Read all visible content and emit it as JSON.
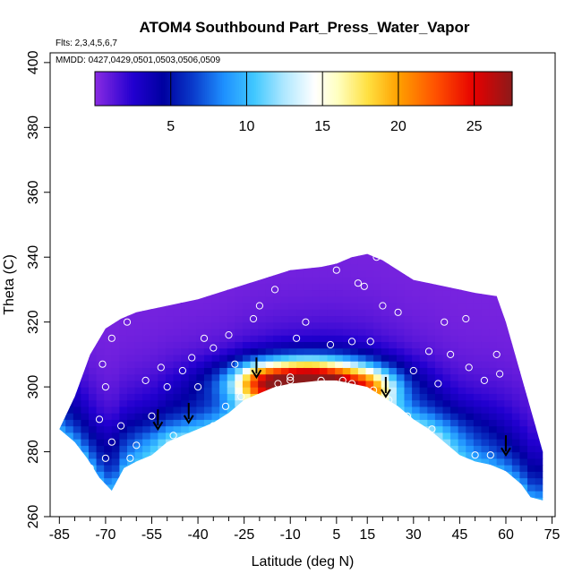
{
  "chart_data": {
    "type": "heatmap",
    "title": "ATOM4 Southbound Part_Press_Water_Vapor",
    "subtitle_flights": "Flts: 2,3,4,5,6,7",
    "subtitle_dates": "MMDD: 0427,0429,0501,0503,0506,0509",
    "xlabel": "Latitude (deg N)",
    "ylabel": "Theta (C)",
    "xlim": [
      -88,
      76
    ],
    "ylim": [
      260,
      403
    ],
    "x_tick_labels": [
      "-85",
      "-70",
      "-55",
      "-40",
      "-25",
      "-10",
      "5",
      "15",
      "30",
      "45",
      "60",
      "75"
    ],
    "x_tick_values": [
      -85,
      -70,
      -55,
      -40,
      -25,
      -10,
      5,
      15,
      30,
      45,
      60,
      75
    ],
    "x_minor_ticks": [
      -80,
      -75,
      -65,
      -60,
      -50,
      -45,
      -35,
      -30,
      -20,
      -15,
      -5,
      0,
      10,
      20,
      25,
      35,
      40,
      50,
      55,
      65,
      70
    ],
    "y_tick_labels": [
      "260",
      "280",
      "300",
      "320",
      "340",
      "360",
      "380",
      "400"
    ],
    "y_tick_values": [
      260,
      280,
      300,
      320,
      340,
      360,
      380,
      400
    ],
    "colorbar": {
      "range": [
        0,
        27.5
      ],
      "tick_labels": [
        "5",
        "10",
        "15",
        "20",
        "25"
      ],
      "tick_values": [
        5,
        10,
        15,
        20,
        25
      ],
      "stops": [
        {
          "v": 0,
          "c": "#8a2be2"
        },
        {
          "v": 2.5,
          "c": "#2200d0"
        },
        {
          "v": 4.5,
          "c": "#0000a0"
        },
        {
          "v": 6.5,
          "c": "#0a3ccc"
        },
        {
          "v": 8.5,
          "c": "#1e90ff"
        },
        {
          "v": 10.5,
          "c": "#40c8ff"
        },
        {
          "v": 12.5,
          "c": "#b0e8ff"
        },
        {
          "v": 14.5,
          "c": "#ffffff"
        },
        {
          "v": 16,
          "c": "#ffffc0"
        },
        {
          "v": 18,
          "c": "#ffe040"
        },
        {
          "v": 20,
          "c": "#ffa000"
        },
        {
          "v": 22.5,
          "c": "#ff5000"
        },
        {
          "v": 25,
          "c": "#e60000"
        },
        {
          "v": 27.5,
          "c": "#8c1a1a"
        }
      ]
    },
    "domain_top": [
      [
        -85,
        287
      ],
      [
        -80,
        297
      ],
      [
        -75,
        310
      ],
      [
        -70,
        318
      ],
      [
        -65,
        321
      ],
      [
        -60,
        323
      ],
      [
        -50,
        325
      ],
      [
        -40,
        327
      ],
      [
        -30,
        330
      ],
      [
        -20,
        333
      ],
      [
        -10,
        336
      ],
      [
        0,
        337
      ],
      [
        5,
        338
      ],
      [
        10,
        340
      ],
      [
        15,
        341
      ],
      [
        20,
        339
      ],
      [
        25,
        336
      ],
      [
        30,
        333
      ],
      [
        40,
        331
      ],
      [
        50,
        329
      ],
      [
        57,
        328
      ],
      [
        60,
        320
      ],
      [
        63,
        310
      ],
      [
        66,
        300
      ],
      [
        69,
        290
      ],
      [
        72,
        280
      ],
      [
        72,
        265
      ]
    ],
    "domain_bottom": [
      [
        -85,
        287
      ],
      [
        -80,
        283
      ],
      [
        -76,
        278
      ],
      [
        -72,
        272
      ],
      [
        -68,
        268
      ],
      [
        -64,
        275
      ],
      [
        -60,
        277
      ],
      [
        -55,
        279
      ],
      [
        -50,
        283
      ],
      [
        -45,
        285
      ],
      [
        -40,
        287
      ],
      [
        -35,
        289
      ],
      [
        -30,
        292
      ],
      [
        -25,
        296
      ],
      [
        -20,
        298
      ],
      [
        -15,
        300
      ],
      [
        -10,
        301
      ],
      [
        -5,
        301.5
      ],
      [
        0,
        302
      ],
      [
        5,
        302
      ],
      [
        10,
        301
      ],
      [
        15,
        300
      ],
      [
        20,
        297
      ],
      [
        25,
        294
      ],
      [
        30,
        290
      ],
      [
        35,
        287
      ],
      [
        40,
        283
      ],
      [
        45,
        279
      ],
      [
        50,
        277
      ],
      [
        55,
        276
      ],
      [
        60,
        274
      ],
      [
        65,
        270
      ],
      [
        68,
        266
      ],
      [
        72,
        265
      ]
    ],
    "fields": [
      {
        "type": "gauss",
        "x": -5,
        "y": 302,
        "sx": 15,
        "sy": 4.5,
        "amp": 24
      },
      {
        "type": "gauss",
        "x": 16,
        "y": 299,
        "sx": 6,
        "sy": 4,
        "amp": 6
      },
      {
        "type": "gauss",
        "x": -20,
        "y": 301,
        "sx": 5,
        "sy": 4,
        "amp": 4
      },
      {
        "type": "gauss",
        "x": 38,
        "y": 285,
        "sx": 10,
        "sy": 6,
        "amp": 3
      },
      {
        "type": "gauss",
        "x": -50,
        "y": 283,
        "sx": 12,
        "sy": 5,
        "amp": 2.5
      },
      {
        "type": "wall",
        "bottom_amp": 9,
        "bottom_scale": 12,
        "base": 0.4,
        "decay_alt": 0.03
      }
    ],
    "sample_points": [
      [
        -75,
        275
      ],
      [
        -70,
        278
      ],
      [
        -68,
        283
      ],
      [
        -65,
        288
      ],
      [
        -62,
        278
      ],
      [
        -60,
        282
      ],
      [
        -58,
        276
      ],
      [
        -72,
        290
      ],
      [
        -70,
        300
      ],
      [
        -71,
        307
      ],
      [
        -68,
        315
      ],
      [
        -63,
        320
      ],
      [
        -57,
        302
      ],
      [
        -52,
        306
      ],
      [
        -50,
        300
      ],
      [
        -45,
        305
      ],
      [
        -42,
        309
      ],
      [
        -40,
        300
      ],
      [
        -38,
        315
      ],
      [
        -35,
        312
      ],
      [
        -30,
        316
      ],
      [
        -28,
        307
      ],
      [
        -26,
        297
      ],
      [
        -22,
        321
      ],
      [
        -20,
        325
      ],
      [
        -15,
        330
      ],
      [
        -10,
        303
      ],
      [
        -8,
        315
      ],
      [
        -5,
        320
      ],
      [
        0,
        302
      ],
      [
        3,
        313
      ],
      [
        5,
        336
      ],
      [
        7,
        302
      ],
      [
        10,
        314
      ],
      [
        12,
        332
      ],
      [
        14,
        331
      ],
      [
        16,
        314
      ],
      [
        17,
        299
      ],
      [
        18,
        340
      ],
      [
        18,
        341
      ],
      [
        20,
        325
      ],
      [
        22,
        296
      ],
      [
        25,
        323
      ],
      [
        28,
        291
      ],
      [
        30,
        305
      ],
      [
        35,
        311
      ],
      [
        36,
        287
      ],
      [
        38,
        301
      ],
      [
        40,
        320
      ],
      [
        42,
        310
      ],
      [
        45,
        333
      ],
      [
        47,
        321
      ],
      [
        48,
        306
      ],
      [
        50,
        279
      ],
      [
        53,
        302
      ],
      [
        55,
        279
      ],
      [
        57,
        310
      ],
      [
        58,
        304
      ],
      [
        60,
        328
      ],
      [
        -55,
        291
      ],
      [
        -48,
        285
      ],
      [
        -44,
        284
      ],
      [
        -35,
        288
      ],
      [
        -31,
        294
      ],
      [
        -14,
        301
      ],
      [
        -10,
        302
      ],
      [
        10,
        301
      ],
      [
        25,
        290
      ]
    ],
    "arrows": [
      [
        -53,
        287
      ],
      [
        -43,
        289
      ],
      [
        -21,
        303
      ],
      [
        21,
        297
      ],
      [
        60,
        279
      ]
    ]
  }
}
